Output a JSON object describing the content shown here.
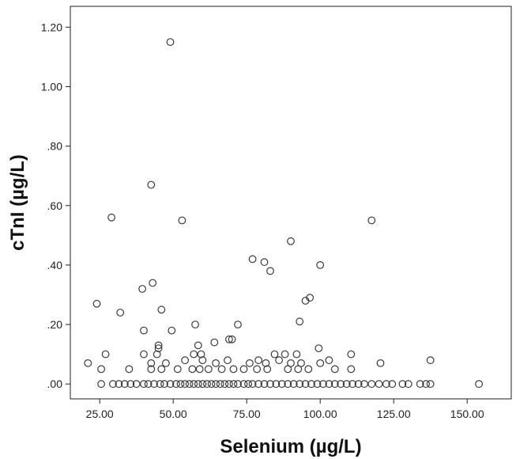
{
  "chart_data": {
    "type": "scatter",
    "title": "",
    "xlabel": "Selenium (µg/L)",
    "ylabel": "cTnI (µg/L)",
    "xlim": [
      15,
      165
    ],
    "ylim": [
      -0.05,
      1.27
    ],
    "xticks": [
      25,
      50,
      75,
      100,
      125,
      150
    ],
    "xtick_labels": [
      "25.00",
      "50.00",
      "75.00",
      "100.00",
      "125.00",
      "150.00"
    ],
    "yticks": [
      0.0,
      0.2,
      0.4,
      0.6,
      0.8,
      1.0,
      1.2
    ],
    "ytick_labels": [
      ".00",
      ".20",
      ".40",
      ".60",
      ".80",
      "1.00",
      "1.20"
    ],
    "grid": false,
    "legend": "none",
    "marker": "open-circle",
    "series": [
      {
        "points": [
          [
            49,
            1.15
          ],
          [
            42.5,
            0.67
          ],
          [
            29,
            0.56
          ],
          [
            53,
            0.55
          ],
          [
            117.5,
            0.55
          ],
          [
            90,
            0.48
          ],
          [
            77,
            0.42
          ],
          [
            81,
            0.41
          ],
          [
            100,
            0.4
          ],
          [
            83,
            0.38
          ],
          [
            43,
            0.34
          ],
          [
            39.5,
            0.32
          ],
          [
            96.5,
            0.29
          ],
          [
            95,
            0.28
          ],
          [
            24,
            0.27
          ],
          [
            46,
            0.25
          ],
          [
            32,
            0.24
          ],
          [
            93,
            0.21
          ],
          [
            57.5,
            0.2
          ],
          [
            72,
            0.2
          ],
          [
            40,
            0.18
          ],
          [
            49.5,
            0.18
          ],
          [
            69,
            0.15
          ],
          [
            70,
            0.15
          ],
          [
            64,
            0.14
          ],
          [
            45,
            0.13
          ],
          [
            58.5,
            0.13
          ],
          [
            45,
            0.12
          ],
          [
            99.5,
            0.12
          ],
          [
            27,
            0.1
          ],
          [
            40,
            0.1
          ],
          [
            44.5,
            0.1
          ],
          [
            57,
            0.1
          ],
          [
            59.5,
            0.1
          ],
          [
            84.5,
            0.1
          ],
          [
            88,
            0.1
          ],
          [
            92,
            0.1
          ],
          [
            110.5,
            0.1
          ],
          [
            21,
            0.07
          ],
          [
            42.5,
            0.07
          ],
          [
            47.5,
            0.07
          ],
          [
            54,
            0.08
          ],
          [
            60,
            0.08
          ],
          [
            64.5,
            0.07
          ],
          [
            68.5,
            0.08
          ],
          [
            76,
            0.07
          ],
          [
            79,
            0.08
          ],
          [
            81.5,
            0.07
          ],
          [
            86,
            0.08
          ],
          [
            90,
            0.07
          ],
          [
            93.5,
            0.07
          ],
          [
            100,
            0.07
          ],
          [
            103,
            0.08
          ],
          [
            120.5,
            0.07
          ],
          [
            137.5,
            0.08
          ],
          [
            25.5,
            0.05
          ],
          [
            35,
            0.05
          ],
          [
            42.5,
            0.05
          ],
          [
            46,
            0.05
          ],
          [
            51.5,
            0.05
          ],
          [
            56.5,
            0.05
          ],
          [
            59,
            0.05
          ],
          [
            62,
            0.05
          ],
          [
            66.5,
            0.05
          ],
          [
            70.5,
            0.05
          ],
          [
            74,
            0.05
          ],
          [
            78.5,
            0.05
          ],
          [
            82,
            0.05
          ],
          [
            89,
            0.05
          ],
          [
            92.5,
            0.05
          ],
          [
            96,
            0.05
          ],
          [
            105,
            0.05
          ],
          [
            110.5,
            0.05
          ],
          [
            25.5,
            0.0
          ],
          [
            29.5,
            0.0
          ],
          [
            31.5,
            0.0
          ],
          [
            33.5,
            0.0
          ],
          [
            35.5,
            0.0
          ],
          [
            37.5,
            0.0
          ],
          [
            40,
            0.0
          ],
          [
            41.5,
            0.0
          ],
          [
            43.5,
            0.0
          ],
          [
            45.5,
            0.0
          ],
          [
            47,
            0.0
          ],
          [
            49,
            0.0
          ],
          [
            51,
            0.0
          ],
          [
            52.5,
            0.0
          ],
          [
            54,
            0.0
          ],
          [
            55.5,
            0.0
          ],
          [
            57,
            0.0
          ],
          [
            58.5,
            0.0
          ],
          [
            60,
            0.0
          ],
          [
            61.5,
            0.0
          ],
          [
            63,
            0.0
          ],
          [
            64.5,
            0.0
          ],
          [
            66,
            0.0
          ],
          [
            67.5,
            0.0
          ],
          [
            69,
            0.0
          ],
          [
            70.5,
            0.0
          ],
          [
            72,
            0.0
          ],
          [
            74,
            0.0
          ],
          [
            75.5,
            0.0
          ],
          [
            77,
            0.0
          ],
          [
            79,
            0.0
          ],
          [
            81,
            0.0
          ],
          [
            83,
            0.0
          ],
          [
            85,
            0.0
          ],
          [
            87,
            0.0
          ],
          [
            89,
            0.0
          ],
          [
            91,
            0.0
          ],
          [
            93,
            0.0
          ],
          [
            95,
            0.0
          ],
          [
            97,
            0.0
          ],
          [
            99,
            0.0
          ],
          [
            101,
            0.0
          ],
          [
            103,
            0.0
          ],
          [
            105,
            0.0
          ],
          [
            107,
            0.0
          ],
          [
            109,
            0.0
          ],
          [
            111,
            0.0
          ],
          [
            113,
            0.0
          ],
          [
            115,
            0.0
          ],
          [
            117.5,
            0.0
          ],
          [
            120,
            0.0
          ],
          [
            122.5,
            0.0
          ],
          [
            124.5,
            0.0
          ],
          [
            128,
            0.0
          ],
          [
            130,
            0.0
          ],
          [
            134,
            0.0
          ],
          [
            136,
            0.0
          ],
          [
            137.5,
            0.0
          ],
          [
            154,
            0.0
          ]
        ]
      }
    ]
  }
}
